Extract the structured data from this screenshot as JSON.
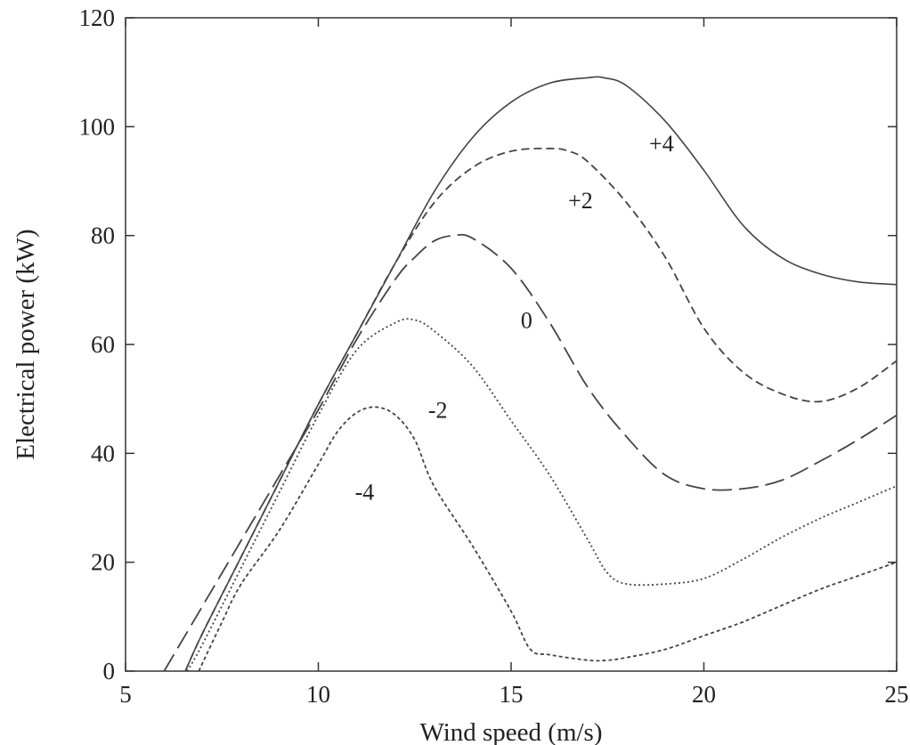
{
  "chart_data": {
    "type": "line",
    "title": "",
    "xlabel": "Wind speed (m/s)",
    "ylabel": "Electrical power (kW)",
    "xlim": [
      5,
      25
    ],
    "ylim": [
      0,
      120
    ],
    "xticks": [
      5,
      10,
      15,
      20,
      25
    ],
    "yticks": [
      0,
      20,
      40,
      60,
      80,
      100,
      120
    ],
    "grid": false,
    "legend": "none",
    "series": [
      {
        "name": "+4",
        "style": "solid",
        "x": [
          6.55,
          7,
          8,
          9,
          10,
          11,
          12,
          13,
          14,
          15,
          16,
          17,
          17.4,
          18,
          19,
          20,
          21,
          22,
          23,
          24,
          25
        ],
        "y": [
          0,
          7,
          21,
          35,
          49,
          62,
          75,
          88,
          98,
          104.5,
          108,
          109,
          109,
          107.5,
          101,
          92,
          82,
          76,
          73,
          71.5,
          71
        ]
      },
      {
        "name": "+2",
        "style": "dashed",
        "x": [
          6.55,
          7,
          8,
          9,
          10,
          11,
          12,
          13,
          14,
          15,
          16,
          16.5,
          17,
          18,
          19,
          20,
          21,
          22,
          23,
          24,
          25
        ],
        "y": [
          0,
          7,
          21,
          35,
          49,
          62,
          75,
          86,
          92.5,
          95.5,
          96,
          95.5,
          93.5,
          86,
          76,
          63,
          55,
          51,
          49.5,
          52,
          57
        ]
      },
      {
        "name": "0",
        "style": "long-dashed",
        "x": [
          6.0,
          7,
          8,
          9,
          10,
          11,
          12,
          12.5,
          13,
          13.5,
          14,
          15,
          16,
          17,
          18,
          19,
          20,
          21,
          22,
          23,
          24,
          25
        ],
        "y": [
          0,
          12,
          24,
          36,
          48,
          61,
          72,
          76,
          79,
          80,
          79.5,
          74,
          64,
          52,
          43,
          36,
          33.5,
          33.5,
          35,
          38.5,
          42.5,
          47
        ]
      },
      {
        "name": "-2",
        "style": "dotted",
        "x": [
          6.6,
          7,
          8,
          9,
          10,
          11,
          12,
          12.5,
          13,
          14,
          15,
          16,
          17,
          17.5,
          18,
          19,
          20,
          21,
          22,
          23,
          24,
          25
        ],
        "y": [
          0,
          5,
          19,
          33,
          47,
          59,
          64,
          64.5,
          62.5,
          56,
          46,
          36,
          24,
          18,
          16,
          16,
          17,
          20.5,
          24.5,
          28,
          31,
          34
        ]
      },
      {
        "name": "-4",
        "style": "short-dashed",
        "x": [
          6.9,
          7.5,
          8,
          9,
          10,
          10.5,
          11,
          11.5,
          12,
          12.5,
          13,
          14,
          15,
          15.5,
          16,
          17,
          17.5,
          18,
          19,
          20,
          21,
          22,
          23,
          24,
          25
        ],
        "y": [
          0,
          9,
          16,
          26,
          38,
          44,
          47.5,
          48.5,
          47,
          42.5,
          34,
          23,
          11,
          4,
          3,
          2,
          2,
          2.5,
          4,
          6.5,
          9,
          12,
          15,
          17.5,
          20
        ]
      }
    ],
    "curve_labels": [
      {
        "text": "+4",
        "x": 18.9,
        "y": 95.5
      },
      {
        "text": "+2",
        "x": 16.8,
        "y": 85
      },
      {
        "text": "0",
        "x": 15.4,
        "y": 63
      },
      {
        "text": "-2",
        "x": 13.1,
        "y": 46.5
      },
      {
        "text": "-4",
        "x": 11.2,
        "y": 31.5
      }
    ]
  }
}
